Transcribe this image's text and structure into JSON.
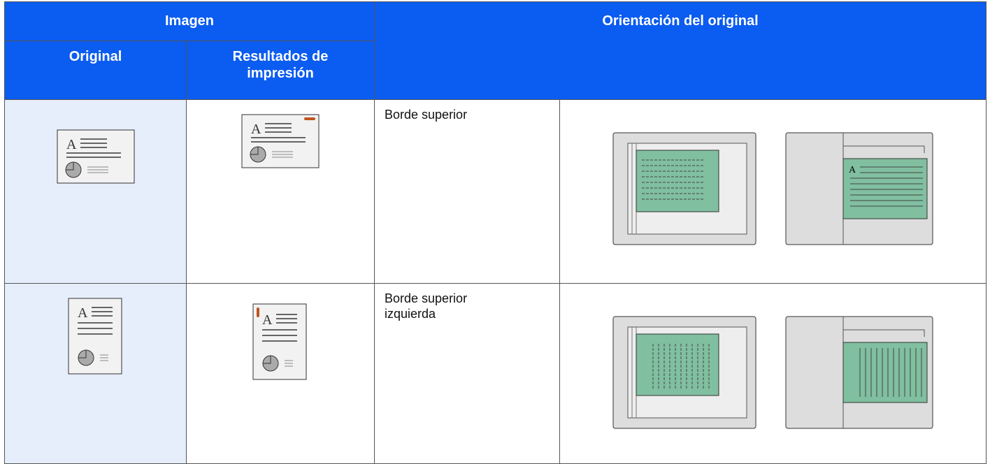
{
  "header": {
    "image": "Imagen",
    "orientation": "Orientación del original",
    "original": "Original",
    "print_results": "Resultados de impresión"
  },
  "rows": [
    {
      "orientation": "Borde superior"
    },
    {
      "orientation": "Borde superior izquierda"
    }
  ]
}
